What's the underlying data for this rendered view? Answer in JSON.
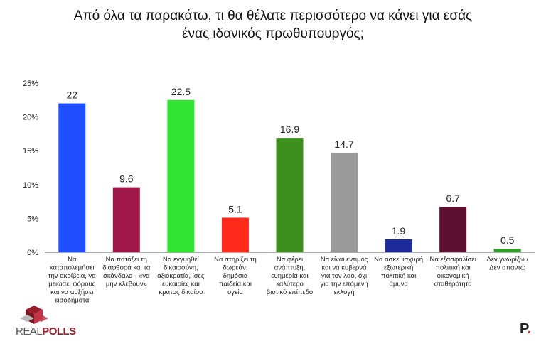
{
  "title_line1": "Από όλα τα παρακάτω, τι θα θέλατε περισσότερο να κάνει για εσάς",
  "title_line2": "ένας ιδανικός πρωθυπουργός;",
  "brand": {
    "left": "REAL",
    "right": "POLLS",
    "corner": "P"
  },
  "chart_data": {
    "type": "bar",
    "title": "Από όλα τα παρακάτω, τι θα θέλατε περισσότερο να κάνει για εσάς ένας ιδανικός πρωθυπουργός;",
    "xlabel": "",
    "ylabel": "",
    "ylim": [
      0,
      25
    ],
    "yticks": [
      "0%",
      "5%",
      "10%",
      "15%",
      "20%",
      "25%"
    ],
    "grid": false,
    "categories": [
      [
        "Να",
        "καταπολεμήσει",
        "την ακρίβεια, να",
        "μειώσει φόρους",
        "και να αυξήσει",
        "εισοδήματα"
      ],
      [
        "Να πατάξει τη",
        "διαφθορά και τα",
        "σκάνδαλα - «να",
        "μην κλέβουν»"
      ],
      [
        "Να εγγυηθεί",
        "δικαιοσύνη,",
        "αξιοκρατία, ίσες",
        "ευκαιρίες και",
        "κράτος δικαίου"
      ],
      [
        "Να στηρίξει τη",
        "δωρεάν,",
        "δημόσια",
        "παιδεία και",
        "υγεία"
      ],
      [
        "Να φέρει",
        "ανάπτυξη,",
        "ευημερία και",
        "καλύτερο",
        "βιοτικό επίπεδο"
      ],
      [
        "Να είναι έντιμος",
        "και να κυβερνά",
        "για τον λαό, όχι",
        "για την επόμενη",
        "εκλογή"
      ],
      [
        "Να ασκεί ισχυρή",
        "εξωτερική",
        "πολιτική και",
        "άμυνα"
      ],
      [
        "Να εξασφαλίσει",
        "πολιτική και",
        "οικονομική",
        "σταθερότητα"
      ],
      [
        "Δεν γνωρίζω /",
        "Δεν απαντώ"
      ]
    ],
    "values": [
      22,
      9.6,
      22.5,
      5.1,
      16.9,
      14.7,
      1.9,
      6.7,
      0.5
    ],
    "value_labels": [
      "22",
      "9.6",
      "22.5",
      "5.1",
      "16.9",
      "14.7",
      "1.9",
      "6.7",
      "0.5"
    ],
    "colors": [
      "#1f4fff",
      "#a01848",
      "#33e533",
      "#ff2a1a",
      "#3d8f1e",
      "#9a9a9a",
      "#1c2a9c",
      "#5e1030",
      "#2e9e28"
    ]
  }
}
